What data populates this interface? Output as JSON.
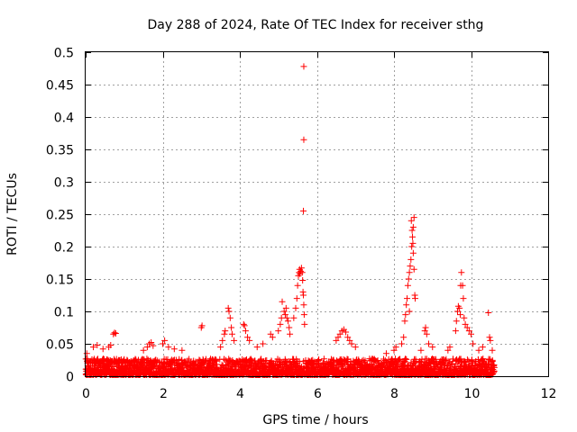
{
  "chart_data": {
    "type": "scatter",
    "title": "Day 288 of 2024, Rate Of TEC Index for receiver sthg",
    "xlabel": "GPS time / hours",
    "ylabel": "ROTI / TECUs",
    "xlim": [
      0,
      12
    ],
    "ylim": [
      0,
      0.5
    ],
    "x_ticks": [
      0,
      2,
      4,
      6,
      8,
      10,
      12
    ],
    "x_tick_labels": [
      "0",
      "2",
      "4",
      "6",
      "8",
      "10",
      "12"
    ],
    "y_ticks": [
      0,
      0.05,
      0.1,
      0.15,
      0.2,
      0.25,
      0.3,
      0.35,
      0.4,
      0.45,
      0.5
    ],
    "y_tick_labels": [
      "0",
      "0.05",
      "0.1",
      "0.15",
      "0.2",
      "0.25",
      "0.3",
      "0.35",
      "0.4",
      "0.45",
      "0.5"
    ],
    "grid": true,
    "marker": "+",
    "color": "#ff0000",
    "data_range_hours": [
      0,
      10.6
    ],
    "baseline_max": 0.025,
    "series": [
      {
        "name": "ROTI",
        "points": [
          [
            0.03,
            0.035
          ],
          [
            0.05,
            0.02
          ],
          [
            0.08,
            0.012
          ],
          [
            0.2,
            0.045
          ],
          [
            0.3,
            0.048
          ],
          [
            0.45,
            0.042
          ],
          [
            0.6,
            0.045
          ],
          [
            0.65,
            0.048
          ],
          [
            0.72,
            0.065
          ],
          [
            0.75,
            0.067
          ],
          [
            0.78,
            0.066
          ],
          [
            1.5,
            0.04
          ],
          [
            1.6,
            0.045
          ],
          [
            1.65,
            0.05
          ],
          [
            1.7,
            0.052
          ],
          [
            1.75,
            0.047
          ],
          [
            2.0,
            0.05
          ],
          [
            2.05,
            0.055
          ],
          [
            2.15,
            0.045
          ],
          [
            2.3,
            0.042
          ],
          [
            2.5,
            0.04
          ],
          [
            3.0,
            0.075
          ],
          [
            3.02,
            0.078
          ],
          [
            3.5,
            0.045
          ],
          [
            3.55,
            0.055
          ],
          [
            3.6,
            0.065
          ],
          [
            3.62,
            0.07
          ],
          [
            3.7,
            0.105
          ],
          [
            3.72,
            0.1
          ],
          [
            3.75,
            0.09
          ],
          [
            3.78,
            0.075
          ],
          [
            3.8,
            0.065
          ],
          [
            3.85,
            0.055
          ],
          [
            4.1,
            0.08
          ],
          [
            4.12,
            0.078
          ],
          [
            4.15,
            0.07
          ],
          [
            4.2,
            0.06
          ],
          [
            4.25,
            0.055
          ],
          [
            4.45,
            0.045
          ],
          [
            4.6,
            0.05
          ],
          [
            4.8,
            0.065
          ],
          [
            4.85,
            0.06
          ],
          [
            5.0,
            0.07
          ],
          [
            5.05,
            0.08
          ],
          [
            5.08,
            0.09
          ],
          [
            5.1,
            0.115
          ],
          [
            5.15,
            0.1
          ],
          [
            5.18,
            0.095
          ],
          [
            5.2,
            0.105
          ],
          [
            5.22,
            0.09
          ],
          [
            5.25,
            0.085
          ],
          [
            5.28,
            0.075
          ],
          [
            5.3,
            0.065
          ],
          [
            5.4,
            0.09
          ],
          [
            5.45,
            0.105
          ],
          [
            5.48,
            0.12
          ],
          [
            5.5,
            0.14
          ],
          [
            5.52,
            0.155
          ],
          [
            5.54,
            0.16
          ],
          [
            5.55,
            0.165
          ],
          [
            5.56,
            0.158
          ],
          [
            5.58,
            0.162
          ],
          [
            5.6,
            0.167
          ],
          [
            5.62,
            0.16
          ],
          [
            5.63,
            0.148
          ],
          [
            5.64,
            0.13
          ],
          [
            5.65,
            0.125
          ],
          [
            5.66,
            0.11
          ],
          [
            5.67,
            0.095
          ],
          [
            5.68,
            0.08
          ],
          [
            5.65,
            0.255
          ],
          [
            5.66,
            0.365
          ],
          [
            5.66,
            0.478
          ],
          [
            6.5,
            0.055
          ],
          [
            6.55,
            0.06
          ],
          [
            6.6,
            0.065
          ],
          [
            6.65,
            0.07
          ],
          [
            6.7,
            0.072
          ],
          [
            6.75,
            0.068
          ],
          [
            6.8,
            0.06
          ],
          [
            6.85,
            0.055
          ],
          [
            6.9,
            0.05
          ],
          [
            7.0,
            0.045
          ],
          [
            7.8,
            0.035
          ],
          [
            8.0,
            0.04
          ],
          [
            8.05,
            0.045
          ],
          [
            8.2,
            0.05
          ],
          [
            8.25,
            0.06
          ],
          [
            8.28,
            0.085
          ],
          [
            8.3,
            0.095
          ],
          [
            8.32,
            0.11
          ],
          [
            8.34,
            0.12
          ],
          [
            8.36,
            0.14
          ],
          [
            8.38,
            0.15
          ],
          [
            8.4,
            0.16
          ],
          [
            8.42,
            0.17
          ],
          [
            8.44,
            0.18
          ],
          [
            8.46,
            0.2
          ],
          [
            8.48,
            0.215
          ],
          [
            8.5,
            0.23
          ],
          [
            8.52,
            0.245
          ],
          [
            8.45,
            0.24
          ],
          [
            8.47,
            0.225
          ],
          [
            8.49,
            0.205
          ],
          [
            8.5,
            0.19
          ],
          [
            8.52,
            0.165
          ],
          [
            8.54,
            0.125
          ],
          [
            8.55,
            0.12
          ],
          [
            8.4,
            0.1
          ],
          [
            8.7,
            0.04
          ],
          [
            8.8,
            0.07
          ],
          [
            8.82,
            0.075
          ],
          [
            8.85,
            0.065
          ],
          [
            8.9,
            0.05
          ],
          [
            9.0,
            0.045
          ],
          [
            9.4,
            0.04
          ],
          [
            9.45,
            0.045
          ],
          [
            9.6,
            0.07
          ],
          [
            9.62,
            0.085
          ],
          [
            9.65,
            0.1
          ],
          [
            9.67,
            0.108
          ],
          [
            9.7,
            0.105
          ],
          [
            9.72,
            0.095
          ],
          [
            9.73,
            0.14
          ],
          [
            9.75,
            0.16
          ],
          [
            9.78,
            0.14
          ],
          [
            9.8,
            0.12
          ],
          [
            9.82,
            0.09
          ],
          [
            9.85,
            0.08
          ],
          [
            9.9,
            0.075
          ],
          [
            9.95,
            0.07
          ],
          [
            10.0,
            0.065
          ],
          [
            10.05,
            0.05
          ],
          [
            10.2,
            0.04
          ],
          [
            10.3,
            0.045
          ],
          [
            10.45,
            0.098
          ],
          [
            10.48,
            0.06
          ],
          [
            10.5,
            0.055
          ],
          [
            10.55,
            0.04
          ]
        ]
      }
    ]
  }
}
